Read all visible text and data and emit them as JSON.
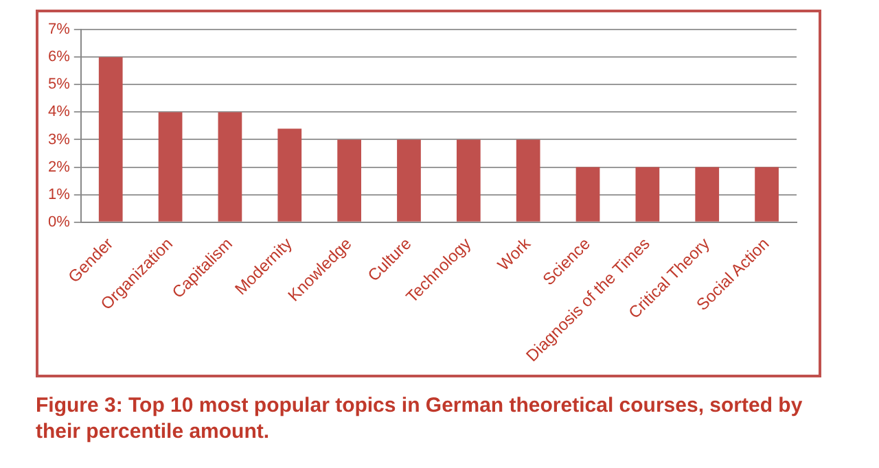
{
  "chart_data": {
    "type": "bar",
    "categories": [
      "Gender",
      "Organization",
      "Capitalism",
      "Modernity",
      "Knowledge",
      "Culture",
      "Technology",
      "Work",
      "Science",
      "Diagnosis of the Times",
      "Critical Theory",
      "Social Action"
    ],
    "values": [
      6,
      4,
      4,
      3.4,
      3,
      3,
      3,
      3,
      2,
      2,
      2,
      2
    ],
    "color": "#c0504d",
    "ylim": [
      0,
      7
    ],
    "yticks": [
      {
        "value": 0,
        "label": "0%"
      },
      {
        "value": 1,
        "label": "1%"
      },
      {
        "value": 2,
        "label": "2%"
      },
      {
        "value": 3,
        "label": "3%"
      },
      {
        "value": 4,
        "label": "4%"
      },
      {
        "value": 5,
        "label": "5%"
      },
      {
        "value": 6,
        "label": "6%"
      },
      {
        "value": 7,
        "label": "7%"
      }
    ],
    "grid": "y",
    "legend": false,
    "annotations": [
      "Figure 3: Top 10 most popular topics in German theoretical courses, sorted by their percentile amount."
    ]
  }
}
